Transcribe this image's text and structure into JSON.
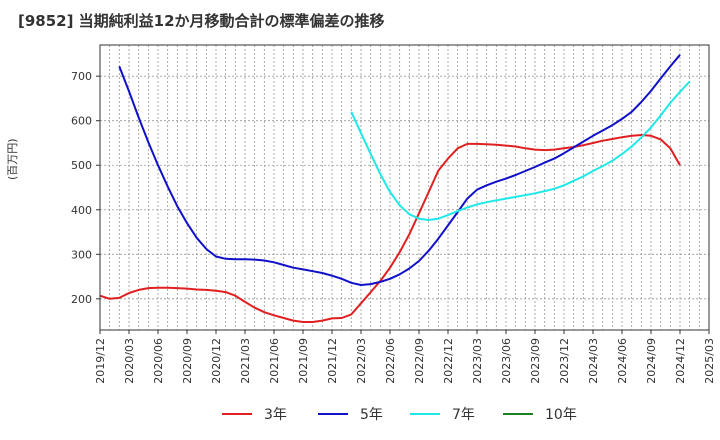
{
  "chart_data": {
    "type": "line",
    "title": "[9852]  当期純利益12か月移動合計の標準偏差の推移",
    "ylabel": "(百万円)",
    "xlabel": "",
    "ylim": [
      130,
      770
    ],
    "yticks": [
      200,
      300,
      400,
      500,
      600,
      700
    ],
    "xrange": [
      "2019-12",
      "2025-03"
    ],
    "xticks": [
      "2019/12",
      "2020/03",
      "2020/06",
      "2020/09",
      "2020/12",
      "2021/03",
      "2021/06",
      "2021/09",
      "2021/12",
      "2022/03",
      "2022/06",
      "2022/09",
      "2022/12",
      "2023/03",
      "2023/06",
      "2023/09",
      "2023/12",
      "2024/03",
      "2024/06",
      "2024/09",
      "2024/12",
      "2025/03"
    ],
    "grid": true,
    "legend_position": "bottom",
    "series": [
      {
        "name": "3年",
        "color": "#e02020",
        "points": [
          [
            "2019-12",
            207
          ],
          [
            "2020-01",
            200
          ],
          [
            "2020-02",
            202
          ],
          [
            "2020-03",
            213
          ],
          [
            "2020-04",
            220
          ],
          [
            "2020-05",
            224
          ],
          [
            "2020-06",
            225
          ],
          [
            "2020-07",
            225
          ],
          [
            "2020-08",
            224
          ],
          [
            "2020-09",
            223
          ],
          [
            "2020-10",
            221
          ],
          [
            "2020-11",
            220
          ],
          [
            "2020-12",
            218
          ],
          [
            "2021-01",
            215
          ],
          [
            "2021-02",
            207
          ],
          [
            "2021-03",
            193
          ],
          [
            "2021-04",
            180
          ],
          [
            "2021-05",
            170
          ],
          [
            "2021-06",
            163
          ],
          [
            "2021-07",
            157
          ],
          [
            "2021-08",
            151
          ],
          [
            "2021-09",
            148
          ],
          [
            "2021-10",
            148
          ],
          [
            "2021-11",
            151
          ],
          [
            "2021-12",
            156
          ],
          [
            "2022-01",
            157
          ],
          [
            "2022-02",
            165
          ],
          [
            "2022-03",
            190
          ],
          [
            "2022-04",
            215
          ],
          [
            "2022-05",
            240
          ],
          [
            "2022-06",
            270
          ],
          [
            "2022-07",
            305
          ],
          [
            "2022-08",
            345
          ],
          [
            "2022-09",
            392
          ],
          [
            "2022-10",
            440
          ],
          [
            "2022-11",
            488
          ],
          [
            "2022-12",
            515
          ],
          [
            "2023-01",
            538
          ],
          [
            "2023-02",
            548
          ],
          [
            "2023-03",
            548
          ],
          [
            "2023-04",
            547
          ],
          [
            "2023-05",
            546
          ],
          [
            "2023-06",
            544
          ],
          [
            "2023-07",
            542
          ],
          [
            "2023-08",
            538
          ],
          [
            "2023-09",
            535
          ],
          [
            "2023-10",
            534
          ],
          [
            "2023-11",
            535
          ],
          [
            "2023-12",
            538
          ],
          [
            "2024-01",
            541
          ],
          [
            "2024-02",
            545
          ],
          [
            "2024-03",
            550
          ],
          [
            "2024-04",
            555
          ],
          [
            "2024-05",
            559
          ],
          [
            "2024-06",
            563
          ],
          [
            "2024-07",
            566
          ],
          [
            "2024-08",
            568
          ],
          [
            "2024-09",
            566
          ],
          [
            "2024-10",
            558
          ],
          [
            "2024-11",
            538
          ],
          [
            "2024-12",
            500
          ]
        ]
      },
      {
        "name": "5年",
        "color": "#1010c8",
        "points": [
          [
            "2020-02",
            722
          ],
          [
            "2020-03",
            666
          ],
          [
            "2020-04",
            607
          ],
          [
            "2020-05",
            552
          ],
          [
            "2020-06",
            500
          ],
          [
            "2020-07",
            452
          ],
          [
            "2020-08",
            408
          ],
          [
            "2020-09",
            370
          ],
          [
            "2020-10",
            337
          ],
          [
            "2020-11",
            312
          ],
          [
            "2020-12",
            295
          ],
          [
            "2021-01",
            290
          ],
          [
            "2021-02",
            289
          ],
          [
            "2021-03",
            289
          ],
          [
            "2021-04",
            288
          ],
          [
            "2021-05",
            286
          ],
          [
            "2021-06",
            282
          ],
          [
            "2021-07",
            276
          ],
          [
            "2021-08",
            270
          ],
          [
            "2021-09",
            266
          ],
          [
            "2021-10",
            262
          ],
          [
            "2021-11",
            258
          ],
          [
            "2021-12",
            252
          ],
          [
            "2022-01",
            245
          ],
          [
            "2022-02",
            236
          ],
          [
            "2022-03",
            231
          ],
          [
            "2022-04",
            233
          ],
          [
            "2022-05",
            238
          ],
          [
            "2022-06",
            245
          ],
          [
            "2022-07",
            255
          ],
          [
            "2022-08",
            268
          ],
          [
            "2022-09",
            285
          ],
          [
            "2022-10",
            308
          ],
          [
            "2022-11",
            335
          ],
          [
            "2022-12",
            365
          ],
          [
            "2023-01",
            395
          ],
          [
            "2023-02",
            425
          ],
          [
            "2023-03",
            445
          ],
          [
            "2023-04",
            455
          ],
          [
            "2023-05",
            463
          ],
          [
            "2023-06",
            470
          ],
          [
            "2023-07",
            478
          ],
          [
            "2023-08",
            487
          ],
          [
            "2023-09",
            496
          ],
          [
            "2023-10",
            506
          ],
          [
            "2023-11",
            515
          ],
          [
            "2023-12",
            527
          ],
          [
            "2024-01",
            540
          ],
          [
            "2024-02",
            553
          ],
          [
            "2024-03",
            566
          ],
          [
            "2024-04",
            578
          ],
          [
            "2024-05",
            590
          ],
          [
            "2024-06",
            604
          ],
          [
            "2024-07",
            620
          ],
          [
            "2024-08",
            642
          ],
          [
            "2024-09",
            667
          ],
          [
            "2024-10",
            695
          ],
          [
            "2024-11",
            722
          ],
          [
            "2024-12",
            748
          ]
        ]
      },
      {
        "name": "7年",
        "color": "#20e8e8",
        "points": [
          [
            "2022-02",
            620
          ],
          [
            "2022-03",
            572
          ],
          [
            "2022-04",
            525
          ],
          [
            "2022-05",
            480
          ],
          [
            "2022-06",
            440
          ],
          [
            "2022-07",
            410
          ],
          [
            "2022-08",
            390
          ],
          [
            "2022-09",
            380
          ],
          [
            "2022-10",
            377
          ],
          [
            "2022-11",
            380
          ],
          [
            "2022-12",
            388
          ],
          [
            "2023-01",
            397
          ],
          [
            "2023-02",
            405
          ],
          [
            "2023-03",
            412
          ],
          [
            "2023-04",
            417
          ],
          [
            "2023-05",
            421
          ],
          [
            "2023-06",
            425
          ],
          [
            "2023-07",
            429
          ],
          [
            "2023-08",
            433
          ],
          [
            "2023-09",
            437
          ],
          [
            "2023-10",
            442
          ],
          [
            "2023-11",
            447
          ],
          [
            "2023-12",
            455
          ],
          [
            "2024-01",
            465
          ],
          [
            "2024-02",
            475
          ],
          [
            "2024-03",
            487
          ],
          [
            "2024-04",
            498
          ],
          [
            "2024-05",
            510
          ],
          [
            "2024-06",
            525
          ],
          [
            "2024-07",
            542
          ],
          [
            "2024-08",
            562
          ],
          [
            "2024-09",
            585
          ],
          [
            "2024-10",
            612
          ],
          [
            "2024-11",
            640
          ],
          [
            "2024-12",
            665
          ],
          [
            "2025-01",
            688
          ]
        ]
      },
      {
        "name": "10年",
        "color": "#208020",
        "points": []
      }
    ]
  }
}
